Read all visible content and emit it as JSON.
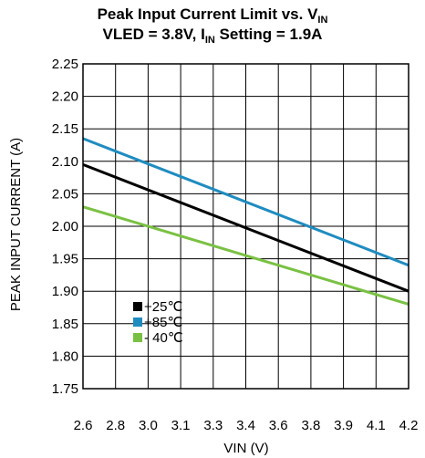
{
  "chart_data": {
    "type": "line",
    "title": {
      "line1_prefix": "Peak Input Current Limit vs. V",
      "line1_sub": "IN",
      "line2_prefix": "VLED = 3.8V, I",
      "line2_sub": "IN",
      "line2_suffix": " Setting = 1.9A"
    },
    "xlabel": "VIN (V)",
    "ylabel": "PEAK INPUT CURRENT (A)",
    "x_tick_labels": [
      "2.6",
      "2.8",
      "3.0",
      "3.1",
      "3.3",
      "3.4",
      "3.6",
      "3.8",
      "3.9",
      "4.1",
      "4.2"
    ],
    "y_tick_labels": [
      "2.25",
      "2.20",
      "2.15",
      "2.10",
      "2.05",
      "2.00",
      "1.95",
      "1.90",
      "1.85",
      "1.80",
      "1.75"
    ],
    "xlim": [
      2.6,
      4.2
    ],
    "ylim": [
      1.75,
      2.25
    ],
    "grid": true,
    "legend_position": "bottom-left",
    "series": [
      {
        "name": "+25℃",
        "color": "#000000",
        "x": [
          2.6,
          4.2
        ],
        "y": [
          2.095,
          1.9
        ]
      },
      {
        "name": "+85℃",
        "color": "#1f8cc0",
        "x": [
          2.6,
          4.2
        ],
        "y": [
          2.135,
          1.94
        ]
      },
      {
        "name": "- 40℃",
        "color": "#7ac143",
        "x": [
          2.6,
          4.2
        ],
        "y": [
          2.03,
          1.88
        ]
      }
    ]
  }
}
